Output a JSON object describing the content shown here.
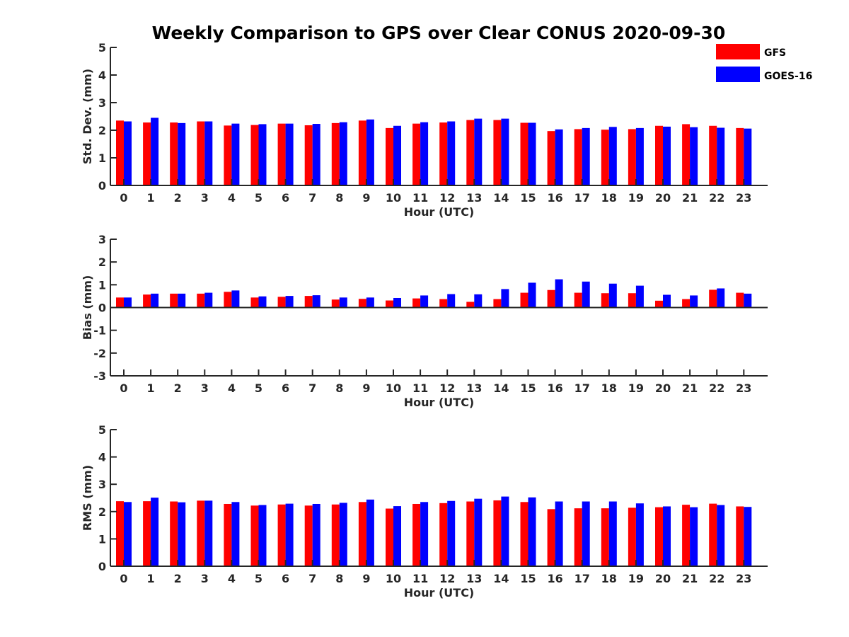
{
  "title": "Weekly Comparison to GPS over Clear CONUS 2020-09-30",
  "colors": {
    "GFS": "#ff0000",
    "GOES-16": "#0000ff"
  },
  "legend": [
    {
      "name": "GFS",
      "color": "#ff0000"
    },
    {
      "name": "GOES-16",
      "color": "#0000ff"
    }
  ],
  "chart_data": [
    {
      "type": "bar",
      "ylabel": "Std. Dev. (mm)",
      "xlabel": "Hour (UTC)",
      "ylim": [
        0,
        5
      ],
      "yticks": [
        0,
        1,
        2,
        3,
        4,
        5
      ],
      "categories": [
        "0",
        "1",
        "2",
        "3",
        "4",
        "5",
        "6",
        "7",
        "8",
        "9",
        "10",
        "11",
        "12",
        "13",
        "14",
        "15",
        "16",
        "17",
        "18",
        "19",
        "20",
        "21",
        "22",
        "23"
      ],
      "series": [
        {
          "name": "GFS",
          "values": [
            2.35,
            2.28,
            2.28,
            2.32,
            2.17,
            2.19,
            2.24,
            2.18,
            2.26,
            2.35,
            2.08,
            2.24,
            2.28,
            2.37,
            2.37,
            2.27,
            1.97,
            2.04,
            2.02,
            2.04,
            2.16,
            2.22,
            2.16,
            2.08
          ]
        },
        {
          "name": "GOES-16",
          "values": [
            2.32,
            2.45,
            2.26,
            2.32,
            2.24,
            2.22,
            2.24,
            2.23,
            2.29,
            2.39,
            2.16,
            2.29,
            2.32,
            2.42,
            2.42,
            2.27,
            2.03,
            2.08,
            2.12,
            2.08,
            2.13,
            2.11,
            2.09,
            2.06
          ]
        }
      ]
    },
    {
      "type": "bar",
      "ylabel": "Bias (mm)",
      "xlabel": "Hour (UTC)",
      "ylim": [
        -3,
        3
      ],
      "yticks": [
        -3,
        -2,
        -1,
        0,
        1,
        2,
        3
      ],
      "categories": [
        "0",
        "1",
        "2",
        "3",
        "4",
        "5",
        "6",
        "7",
        "8",
        "9",
        "10",
        "11",
        "12",
        "13",
        "14",
        "15",
        "16",
        "17",
        "18",
        "19",
        "20",
        "21",
        "22",
        "23"
      ],
      "series": [
        {
          "name": "GFS",
          "values": [
            0.44,
            0.57,
            0.61,
            0.61,
            0.69,
            0.44,
            0.47,
            0.51,
            0.35,
            0.38,
            0.31,
            0.4,
            0.37,
            0.25,
            0.37,
            0.65,
            0.77,
            0.65,
            0.63,
            0.63,
            0.3,
            0.37,
            0.78,
            0.65
          ]
        },
        {
          "name": "GOES-16",
          "values": [
            0.44,
            0.61,
            0.61,
            0.65,
            0.75,
            0.49,
            0.51,
            0.54,
            0.44,
            0.44,
            0.42,
            0.53,
            0.59,
            0.58,
            0.81,
            1.09,
            1.24,
            1.14,
            1.05,
            0.96,
            0.56,
            0.53,
            0.84,
            0.61
          ]
        }
      ]
    },
    {
      "type": "bar",
      "ylabel": "RMS (mm)",
      "xlabel": "Hour (UTC)",
      "ylim": [
        0,
        5
      ],
      "yticks": [
        0,
        1,
        2,
        3,
        4,
        5
      ],
      "categories": [
        "0",
        "1",
        "2",
        "3",
        "4",
        "5",
        "6",
        "7",
        "8",
        "9",
        "10",
        "11",
        "12",
        "13",
        "14",
        "15",
        "16",
        "17",
        "18",
        "19",
        "20",
        "21",
        "22",
        "23"
      ],
      "series": [
        {
          "name": "GFS",
          "values": [
            2.38,
            2.38,
            2.37,
            2.4,
            2.28,
            2.22,
            2.26,
            2.22,
            2.26,
            2.35,
            2.11,
            2.28,
            2.31,
            2.37,
            2.41,
            2.35,
            2.09,
            2.12,
            2.12,
            2.14,
            2.16,
            2.25,
            2.29,
            2.19
          ]
        },
        {
          "name": "GOES-16",
          "values": [
            2.35,
            2.51,
            2.34,
            2.4,
            2.35,
            2.24,
            2.29,
            2.28,
            2.32,
            2.44,
            2.2,
            2.35,
            2.39,
            2.47,
            2.55,
            2.52,
            2.37,
            2.37,
            2.37,
            2.3,
            2.19,
            2.16,
            2.24,
            2.17
          ]
        }
      ]
    }
  ]
}
